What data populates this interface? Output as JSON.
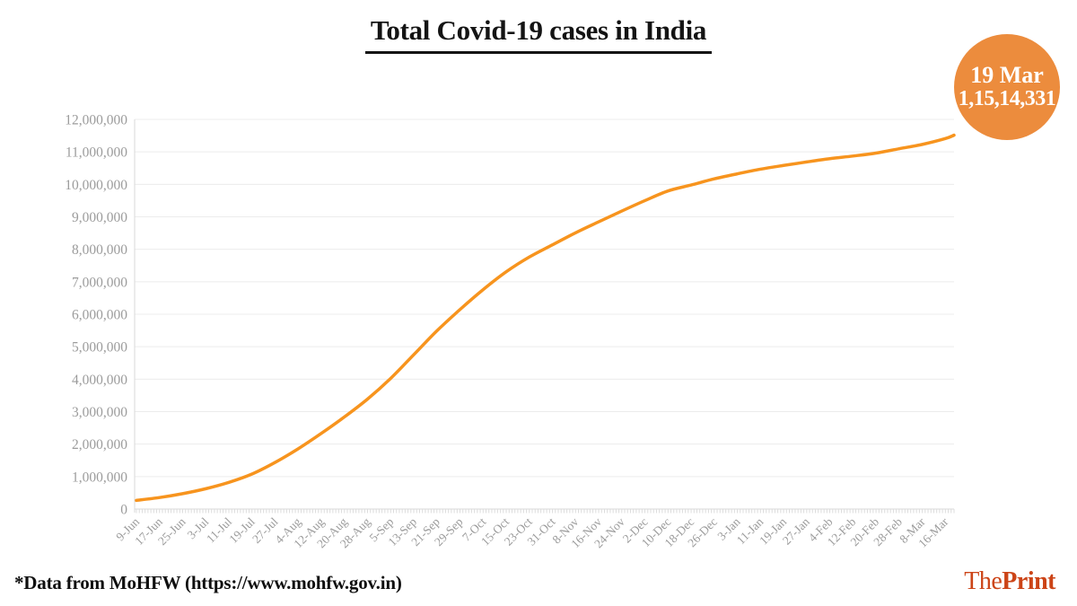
{
  "header": {
    "title": "Total Covid-19 cases in India"
  },
  "badge": {
    "date": "19 Mar",
    "value": "1,15,14,331",
    "background_color": "#EC8C3D",
    "text_color": "#ffffff"
  },
  "footer": {
    "source_note": "*Data from MoHFW (https://www.mohfw.gov.in)"
  },
  "logo": {
    "part1": "The",
    "part2": "Print",
    "color": "#CC4417"
  },
  "chart_data": {
    "type": "line",
    "title": "Total Covid-19 cases in India",
    "xlabel": "",
    "ylabel": "",
    "categories": [
      "9-Jun",
      "17-Jun",
      "25-Jun",
      "3-Jul",
      "11-Jul",
      "19-Jul",
      "27-Jul",
      "4-Aug",
      "12-Aug",
      "20-Aug",
      "28-Aug",
      "5-Sep",
      "13-Sep",
      "21-Sep",
      "29-Sep",
      "7-Oct",
      "15-Oct",
      "23-Oct",
      "31-Oct",
      "8-Nov",
      "16-Nov",
      "24-Nov",
      "2-Dec",
      "10-Dec",
      "18-Dec",
      "26-Dec",
      "3-Jan",
      "11-Jan",
      "19-Jan",
      "27-Jan",
      "4-Feb",
      "12-Feb",
      "20-Feb",
      "28-Feb",
      "8-Mar",
      "16-Mar"
    ],
    "values": [
      266598,
      354065,
      473105,
      625544,
      820916,
      1077618,
      1435453,
      1855745,
      2329638,
      2836925,
      3387500,
      4023179,
      4754356,
      5487580,
      6145291,
      6757131,
      7307097,
      7761312,
      8137119,
      8507754,
      8845127,
      9177840,
      9499413,
      9796769,
      9979447,
      10169118,
      10323965,
      10466595,
      10581837,
      10689527,
      10790183,
      10871294,
      10963394,
      11096731,
      11229398,
      11409831
    ],
    "final_point": {
      "label": "19 Mar",
      "value": 11514331,
      "days_after_start": 283
    },
    "days_between_labels": 8,
    "ylim": [
      0,
      12000000
    ],
    "ytick_step": 1000000,
    "series": [
      {
        "name": "Total Covid-19 cases",
        "color": "#F7941E"
      }
    ],
    "line_color": "#F7941E",
    "line_width": 3.5,
    "grid": true,
    "gridline_color": "#ECECEC",
    "baseline_color": "#D8D8D8",
    "axis_color": "#D8D8D8",
    "minor_tick_color": "#DCDCDC",
    "tick_label_color": "#9B9B9B",
    "legend": "none"
  }
}
